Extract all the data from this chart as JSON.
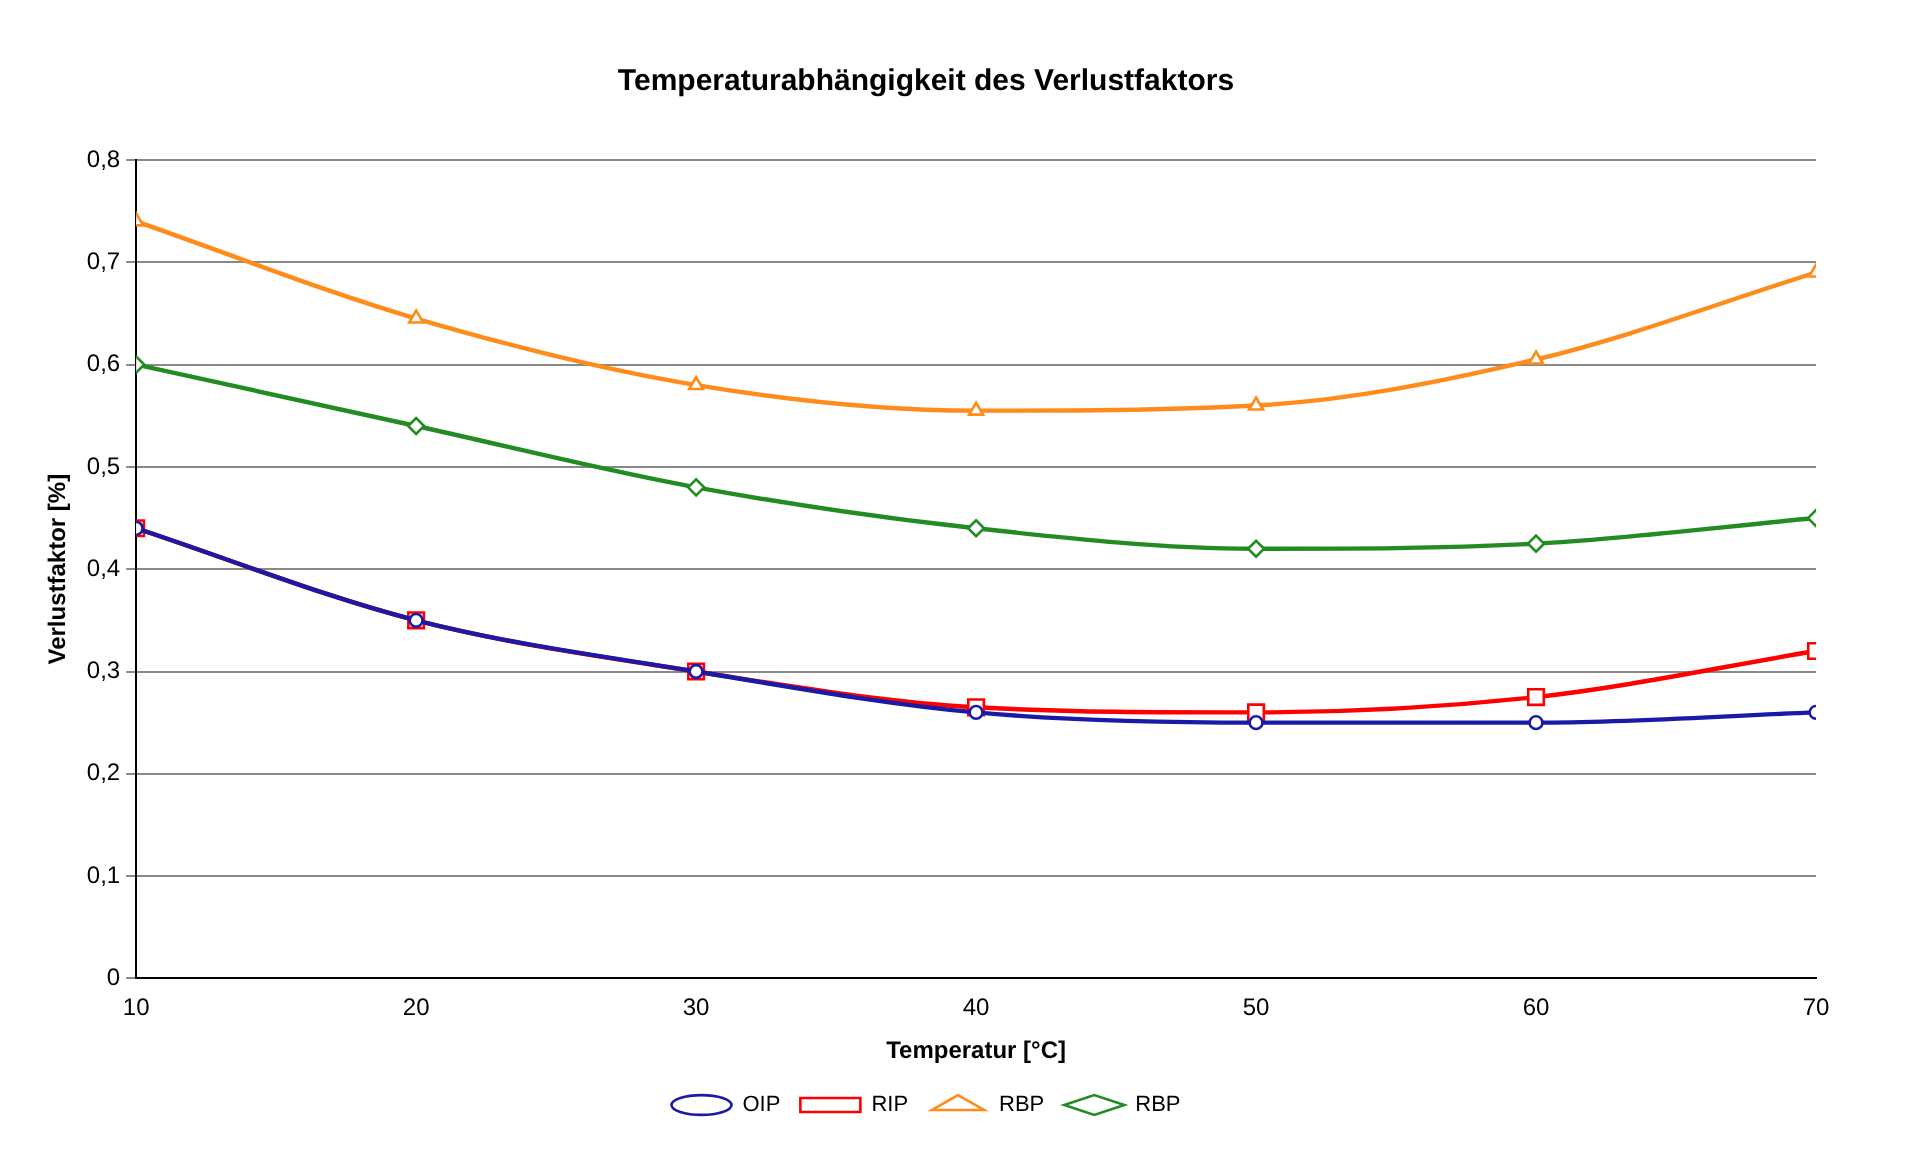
{
  "chart_data": {
    "type": "line",
    "title": "Temperaturabhängigkeit des Verlustfaktors",
    "xlabel": "Temperatur [°C]",
    "ylabel": "Verlustfaktor [%]",
    "x": [
      10,
      20,
      30,
      40,
      50,
      60,
      70
    ],
    "series": [
      {
        "name": "RBP",
        "color": "#228b22",
        "marker": "diamond",
        "values": [
          0.6,
          0.54,
          0.48,
          0.44,
          0.42,
          0.425,
          0.45
        ]
      },
      {
        "name": "RBP",
        "color": "#ff8c1a",
        "marker": "triangle",
        "values": [
          0.74,
          0.645,
          0.58,
          0.555,
          0.56,
          0.605,
          0.69
        ]
      },
      {
        "name": "RIP",
        "color": "#ff0000",
        "marker": "square",
        "values": [
          0.44,
          0.35,
          0.3,
          0.265,
          0.26,
          0.275,
          0.32
        ]
      },
      {
        "name": "OIP",
        "color": "#1a1aa6",
        "marker": "circle",
        "values": [
          0.44,
          0.35,
          0.3,
          0.26,
          0.25,
          0.25,
          0.26
        ]
      }
    ],
    "xlim": [
      10,
      70
    ],
    "xticks": [
      10,
      20,
      30,
      40,
      50,
      60,
      70
    ],
    "ylim": [
      0,
      0.8
    ],
    "yticks": [
      0,
      {
        "value": 0.1,
        "label": "0,1"
      },
      {
        "value": 0.2,
        "label": "0,2"
      },
      {
        "value": 0.3,
        "label": "0,3"
      },
      {
        "value": 0.4,
        "label": "0,4"
      },
      {
        "value": 0.5,
        "label": "0,5"
      },
      {
        "value": 0.6,
        "label": "0,6"
      },
      {
        "value": 0.7,
        "label": "0,7"
      },
      {
        "value": 0.8,
        "label": "0,8"
      }
    ],
    "grid": "y",
    "legend": "bottom"
  }
}
